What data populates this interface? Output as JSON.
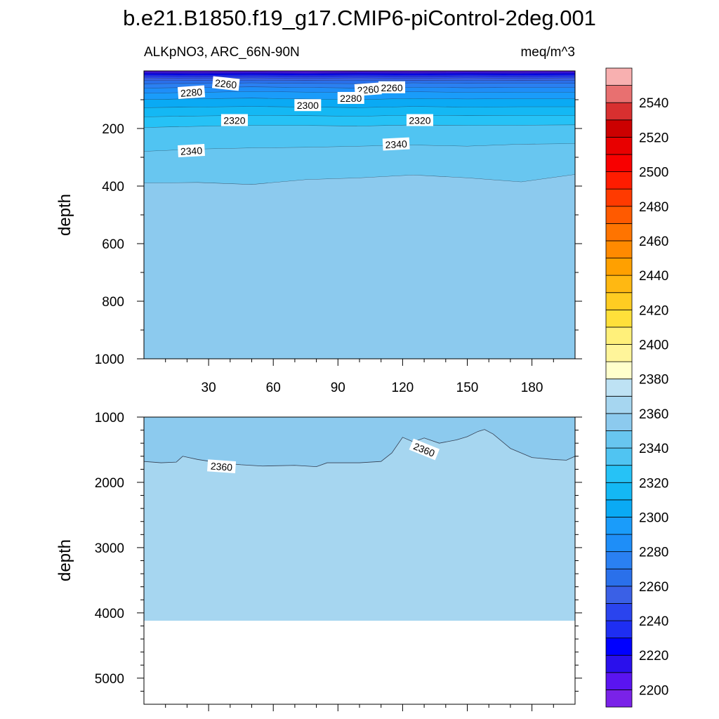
{
  "chart_data": {
    "type": "contour",
    "title": "b.e21.B1850.f19_g17.CMIP6-piControl-2deg.001",
    "variable": "ALKpNO3, ARC_66N-90N",
    "units": "meq/m^3",
    "panels": [
      {
        "name": "upper",
        "ylabel": "depth",
        "ylim": [
          0,
          1000
        ],
        "yticks": [
          "200",
          "400",
          "600",
          "800",
          "1000"
        ],
        "xlim": [
          0,
          200
        ],
        "xticks": [
          "30",
          "60",
          "90",
          "120",
          "150",
          "180"
        ],
        "bands": [
          {
            "level": 2200,
            "depth": [
              5,
              6,
              5,
              7,
              5,
              6,
              5,
              6,
              5
            ]
          },
          {
            "level": 2210,
            "depth": [
              9,
              10,
              9,
              10,
              9,
              10,
              9,
              10,
              9
            ]
          },
          {
            "level": 2220,
            "depth": [
              14,
              15,
              14,
              15,
              14,
              15,
              14,
              15,
              14
            ]
          },
          {
            "level": 2230,
            "depth": [
              19,
              20,
              19,
              20,
              19,
              20,
              19,
              20,
              19
            ]
          },
          {
            "level": 2240,
            "depth": [
              25,
              26,
              25,
              26,
              25,
              26,
              25,
              26,
              25
            ]
          },
          {
            "level": 2250,
            "depth": [
              33,
              34,
              33,
              34,
              33,
              34,
              33,
              34,
              33
            ]
          },
          {
            "level": 2260,
            "depth": [
              45,
              44,
              42,
              44,
              45,
              42,
              44,
              43,
              44
            ]
          },
          {
            "level": 2270,
            "depth": [
              60,
              58,
              56,
              58,
              60,
              57,
              59,
              58,
              58
            ]
          },
          {
            "level": 2280,
            "depth": [
              78,
              75,
              72,
              74,
              76,
              73,
              75,
              74,
              74
            ]
          },
          {
            "level": 2290,
            "depth": [
              100,
              97,
              95,
              98,
              100,
              96,
              98,
              97,
              97
            ]
          },
          {
            "level": 2300,
            "depth": [
              128,
              126,
              124,
              126,
              128,
              124,
              126,
              125,
              125
            ]
          },
          {
            "level": 2310,
            "depth": [
              160,
              157,
              155,
              156,
              158,
              154,
              156,
              155,
              155
            ]
          },
          {
            "level": 2320,
            "depth": [
              197,
              193,
              190,
              190,
              192,
              188,
              190,
              189,
              188
            ]
          },
          {
            "level": 2330,
            "depth": [
              280,
              272,
              268,
              266,
              262,
              258,
              262,
              255,
              253
            ]
          },
          {
            "level": 2340,
            "depth": [
              390,
              388,
              395,
              378,
              372,
              362,
              372,
              386,
              360
            ]
          },
          {
            "level": 2350,
            "depth": [
              1000,
              1000,
              1000,
              1000,
              1000,
              1000,
              1000,
              1000,
              1000
            ]
          }
        ],
        "contour_labels": [
          "2260",
          "2280",
          "2260",
          "2280",
          "2300",
          "2260",
          "2320",
          "2320",
          "2340",
          "2340"
        ]
      },
      {
        "name": "lower",
        "ylabel": "depth",
        "ylim": [
          1000,
          5400
        ],
        "yticks": [
          "1000",
          "2000",
          "3000",
          "4000",
          "5000"
        ],
        "xlim": [
          0,
          200
        ],
        "boundary_2360": [
          [
            0,
            1680
          ],
          [
            8,
            1700
          ],
          [
            15,
            1690
          ],
          [
            18,
            1600
          ],
          [
            25,
            1650
          ],
          [
            35,
            1700
          ],
          [
            45,
            1730
          ],
          [
            55,
            1750
          ],
          [
            70,
            1740
          ],
          [
            80,
            1760
          ],
          [
            85,
            1700
          ],
          [
            100,
            1700
          ],
          [
            110,
            1680
          ],
          [
            115,
            1550
          ],
          [
            120,
            1310
          ],
          [
            125,
            1380
          ],
          [
            130,
            1320
          ],
          [
            137,
            1400
          ],
          [
            145,
            1350
          ],
          [
            150,
            1300
          ],
          [
            155,
            1220
          ],
          [
            158,
            1190
          ],
          [
            162,
            1260
          ],
          [
            170,
            1480
          ],
          [
            180,
            1620
          ],
          [
            190,
            1650
          ],
          [
            196,
            1660
          ],
          [
            200,
            1600
          ]
        ],
        "bottom_depth": 4120,
        "contour_labels": [
          "2360",
          "2360"
        ]
      }
    ],
    "colorbar": {
      "levels": [
        2190,
        2200,
        2210,
        2220,
        2230,
        2240,
        2250,
        2260,
        2270,
        2280,
        2290,
        2300,
        2310,
        2320,
        2330,
        2340,
        2350,
        2360,
        2370,
        2380,
        2390,
        2400,
        2410,
        2420,
        2430,
        2440,
        2450,
        2460,
        2470,
        2480,
        2490,
        2500,
        2510,
        2520,
        2530,
        2540,
        2550,
        2560
      ],
      "colors": [
        "#7a22e8",
        "#5a14f0",
        "#2a10ec",
        "#0000ff",
        "#1e2ef2",
        "#2a44ee",
        "#3a60e6",
        "#2a70ea",
        "#2a80f2",
        "#1e8ef8",
        "#1a9cfa",
        "#0aaaf4",
        "#14b8f4",
        "#26c2f6",
        "#50c4f2",
        "#68c6f0",
        "#8ccaee",
        "#a6d6f0",
        "#bee2f4",
        "#ffffcc",
        "#fff59a",
        "#fff07a",
        "#ffe03a",
        "#ffcc22",
        "#ffb812",
        "#ffa000",
        "#ff8a00",
        "#ff7400",
        "#ff5a00",
        "#ff3a00",
        "#ff1c00",
        "#f80000",
        "#e80000",
        "#cc0000",
        "#d83030",
        "#e87070",
        "#f8b0b0"
      ],
      "tick_labels": [
        "2200",
        "2220",
        "2240",
        "2260",
        "2280",
        "2300",
        "2320",
        "2340",
        "2360",
        "2380",
        "2400",
        "2420",
        "2440",
        "2460",
        "2480",
        "2500",
        "2520",
        "2540"
      ]
    }
  }
}
